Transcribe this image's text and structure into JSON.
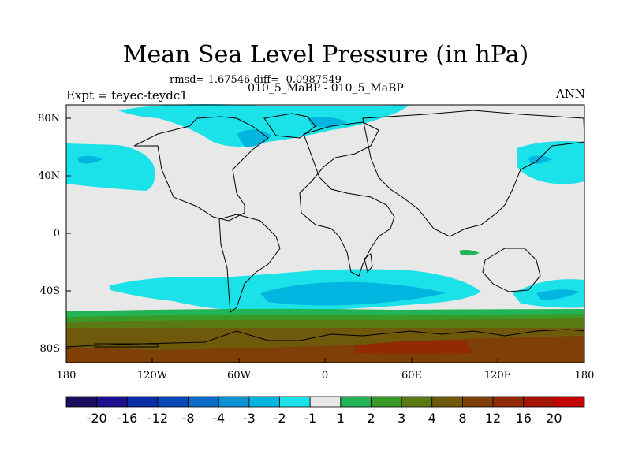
{
  "header": {
    "title": "Mean Sea Level Pressure (in hPa)",
    "stats": "rmsd= 1.67546 diff= -0.0987549",
    "subtitle": "010_5_MaBP - 010_5_MaBP",
    "left_label": "Expt = teyec-teydc1",
    "right_label": "ANN"
  },
  "map": {
    "y_ticks": [
      "80N",
      "40N",
      "0",
      "40S",
      "80S"
    ],
    "x_ticks": [
      "180",
      "120W",
      "60W",
      "0",
      "60E",
      "120E",
      "180"
    ]
  },
  "colorbar": {
    "labels": [
      "-20",
      "-16",
      "-12",
      "-8",
      "-4",
      "-3",
      "-2",
      "-1",
      "1",
      "2",
      "3",
      "4",
      "8",
      "12",
      "16",
      "20"
    ],
    "colors": [
      "#1a0f5e",
      "#1d0f8f",
      "#0a2ca6",
      "#0a48b5",
      "#0a6ac8",
      "#0a92d4",
      "#00b6e0",
      "#1be2e8",
      "#e8e8e8",
      "#22b455",
      "#3a9a28",
      "#5a7a14",
      "#6e5a0a",
      "#7f4008",
      "#922a05",
      "#a41503",
      "#c20502"
    ]
  }
}
